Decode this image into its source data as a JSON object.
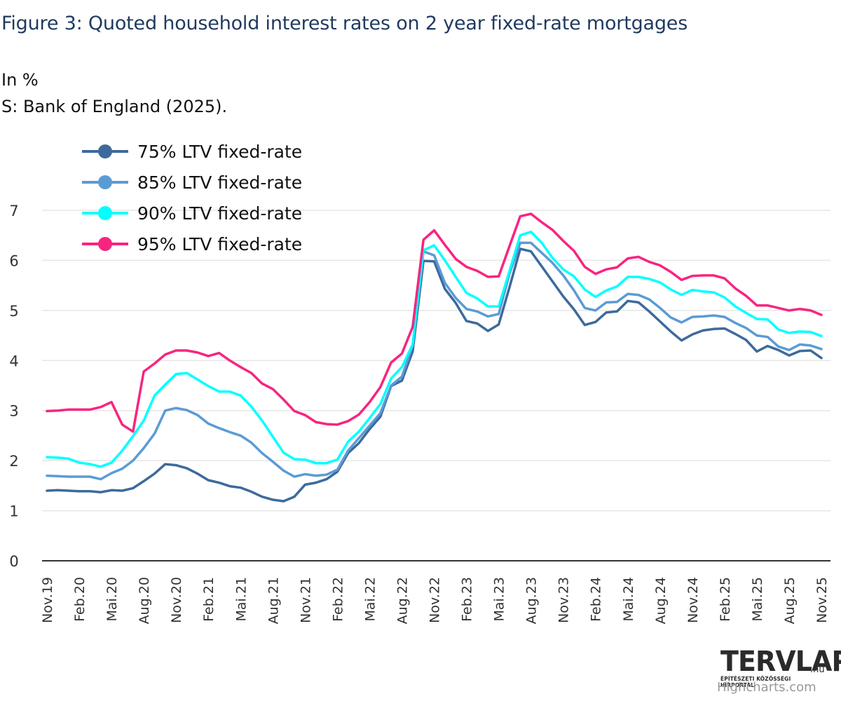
{
  "title": "Figure 3: Quoted household interest rates on 2 year fixed-rate mortgages",
  "subtitle": "In %",
  "source": "S: Bank of England (2025).",
  "logo": {
    "main": "TERVLAP",
    "suffix": ".hu",
    "tagline": "ÉPÍTÉSZETI KÖZÖSSÉGI HÍRPORTÁL"
  },
  "credits": "Highcharts.com",
  "chart_data": {
    "type": "line",
    "title": "Figure 3: Quoted household interest rates on 2 year fixed-rate mortgages",
    "xlabel": "",
    "ylabel": "In %",
    "ylim": [
      0,
      7
    ],
    "yticks": [
      0,
      1,
      2,
      3,
      4,
      5,
      6,
      7
    ],
    "grid": true,
    "legend_position": "top-left",
    "x_tick_labels": [
      "Nov.19",
      "Feb.20",
      "Mai.20",
      "Aug.20",
      "Nov.20",
      "Feb.21",
      "Mai.21",
      "Aug.21",
      "Nov.21",
      "Feb.22",
      "Mai.22",
      "Aug.22",
      "Nov.22",
      "Feb.23",
      "Mai.23",
      "Aug.23",
      "Nov.23",
      "Feb.24",
      "Mai.24",
      "Aug.24",
      "Nov.24",
      "Feb.25",
      "Mai.25",
      "Aug.25",
      "Nov.25"
    ],
    "x_tick_every": 3,
    "x_count": 73,
    "series": [
      {
        "name": "75% LTV fixed-rate",
        "color": "#3d6a9c",
        "values": [
          1.4,
          1.41,
          1.4,
          1.39,
          1.39,
          1.37,
          1.41,
          1.4,
          1.45,
          1.59,
          1.74,
          1.93,
          1.91,
          1.85,
          1.74,
          1.61,
          1.56,
          1.49,
          1.46,
          1.38,
          1.28,
          1.22,
          1.19,
          1.28,
          1.52,
          1.56,
          1.63,
          1.78,
          2.15,
          2.35,
          2.63,
          2.88,
          3.49,
          3.6,
          4.18,
          5.99,
          5.98,
          5.43,
          5.15,
          4.79,
          4.74,
          4.59,
          4.72,
          5.46,
          6.23,
          6.18,
          5.88,
          5.58,
          5.28,
          5.02,
          4.71,
          4.77,
          4.96,
          4.98,
          5.19,
          5.16,
          4.98,
          4.78,
          4.58,
          4.4,
          4.52,
          4.6,
          4.63,
          4.64,
          4.53,
          4.41,
          4.18,
          4.29,
          4.21,
          4.1,
          4.19,
          4.2,
          4.05
        ]
      },
      {
        "name": "85% LTV fixed-rate",
        "color": "#5b9bd5",
        "values": [
          1.7,
          1.69,
          1.68,
          1.68,
          1.68,
          1.63,
          1.75,
          1.84,
          2.0,
          2.25,
          2.54,
          3.0,
          3.05,
          3.01,
          2.91,
          2.74,
          2.65,
          2.57,
          2.5,
          2.36,
          2.15,
          1.98,
          1.8,
          1.68,
          1.73,
          1.7,
          1.72,
          1.82,
          2.2,
          2.45,
          2.7,
          2.95,
          3.5,
          3.68,
          4.3,
          6.18,
          6.1,
          5.55,
          5.25,
          5.03,
          4.98,
          4.88,
          4.93,
          5.73,
          6.35,
          6.35,
          6.15,
          5.95,
          5.7,
          5.4,
          5.05,
          5.0,
          5.16,
          5.17,
          5.33,
          5.31,
          5.22,
          5.05,
          4.86,
          4.76,
          4.87,
          4.88,
          4.9,
          4.87,
          4.75,
          4.65,
          4.5,
          4.47,
          4.28,
          4.21,
          4.32,
          4.3,
          4.23
        ]
      },
      {
        "name": "90% LTV fixed-rate",
        "color": "#00ffff",
        "values": [
          2.07,
          2.06,
          2.04,
          1.96,
          1.93,
          1.88,
          1.96,
          2.2,
          2.49,
          2.8,
          3.3,
          3.52,
          3.73,
          3.75,
          3.62,
          3.49,
          3.38,
          3.38,
          3.3,
          3.08,
          2.8,
          2.48,
          2.16,
          2.03,
          2.02,
          1.95,
          1.95,
          2.02,
          2.38,
          2.58,
          2.85,
          3.13,
          3.64,
          3.87,
          4.32,
          6.2,
          6.3,
          6.0,
          5.67,
          5.35,
          5.24,
          5.08,
          5.08,
          5.78,
          6.5,
          6.57,
          6.35,
          6.05,
          5.82,
          5.68,
          5.42,
          5.27,
          5.4,
          5.48,
          5.67,
          5.67,
          5.63,
          5.56,
          5.42,
          5.31,
          5.41,
          5.38,
          5.36,
          5.26,
          5.08,
          4.95,
          4.83,
          4.82,
          4.62,
          4.55,
          4.58,
          4.57,
          4.49
        ]
      },
      {
        "name": "95% LTV fixed-rate",
        "color": "#f7257f",
        "values": [
          2.99,
          3.0,
          3.02,
          3.02,
          3.02,
          3.07,
          3.17,
          2.72,
          2.58,
          3.78,
          3.94,
          4.12,
          4.2,
          4.2,
          4.16,
          4.09,
          4.15,
          4.0,
          3.87,
          3.75,
          3.54,
          3.43,
          3.22,
          2.99,
          2.91,
          2.77,
          2.73,
          2.72,
          2.79,
          2.92,
          3.17,
          3.47,
          3.96,
          4.14,
          4.67,
          6.41,
          6.6,
          6.31,
          6.03,
          5.87,
          5.79,
          5.67,
          5.68,
          6.28,
          6.88,
          6.93,
          6.76,
          6.61,
          6.39,
          6.19,
          5.87,
          5.73,
          5.82,
          5.86,
          6.04,
          6.07,
          5.97,
          5.9,
          5.77,
          5.61,
          5.69,
          5.7,
          5.7,
          5.64,
          5.44,
          5.29,
          5.1,
          5.1,
          5.05,
          5.0,
          5.03,
          5.0,
          4.91
        ]
      }
    ]
  }
}
